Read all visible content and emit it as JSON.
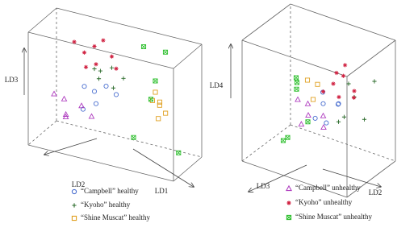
{
  "chart_data": [
    {
      "type": "scatter3d",
      "xlabel": "LD1",
      "ylabel": "LD2",
      "zlabel": "LD3",
      "xlim": [
        0,
        1
      ],
      "ylim": [
        0,
        1
      ],
      "zlim": [
        0,
        1
      ],
      "series": [
        {
          "name": "“Campbell” healthy",
          "color": "#4a6fd0",
          "marker": "circle",
          "x": [
            0.25,
            0.3,
            0.35,
            0.4,
            0.28,
            0.45
          ],
          "y": [
            0.3,
            0.2,
            0.4,
            0.3,
            0.5,
            0.2
          ],
          "z": [
            0.45,
            0.4,
            0.35,
            0.5,
            0.3,
            0.42
          ]
        },
        {
          "name": "“Kyoho” healthy",
          "color": "#2a6a2a",
          "marker": "plus",
          "x": [
            0.3,
            0.35,
            0.4,
            0.45,
            0.5,
            0.38
          ],
          "y": [
            0.2,
            0.3,
            0.1,
            0.3,
            0.2,
            0.4
          ],
          "z": [
            0.6,
            0.55,
            0.62,
            0.5,
            0.58,
            0.65
          ]
        },
        {
          "name": "“Shine Muscat” healthy",
          "color": "#e0a020",
          "marker": "square",
          "x": [
            0.7,
            0.75,
            0.72,
            0.78,
            0.68,
            0.74
          ],
          "y": [
            0.1,
            0.2,
            0.05,
            0.15,
            0.1,
            0.2
          ],
          "z": [
            0.5,
            0.45,
            0.38,
            0.35,
            0.42,
            0.3
          ]
        },
        {
          "name": "“Campbell” unhealthy",
          "color": "#b040c0",
          "marker": "triangle",
          "x": [
            0.15,
            0.2,
            0.25,
            0.1,
            0.3,
            0.22
          ],
          "y": [
            0.5,
            0.7,
            0.4,
            0.6,
            0.3,
            0.8
          ],
          "z": [
            0.35,
            0.25,
            0.3,
            0.4,
            0.2,
            0.3
          ]
        },
        {
          "name": "“Kyoho” unhealthy",
          "color": "#d02040",
          "marker": "asterisk",
          "x": [
            0.25,
            0.3,
            0.35,
            0.4,
            0.45,
            0.3,
            0.2,
            0.38
          ],
          "y": [
            0.3,
            0.2,
            0.4,
            0.1,
            0.2,
            0.5,
            0.4,
            0.3
          ],
          "z": [
            0.75,
            0.8,
            0.7,
            0.72,
            0.65,
            0.68,
            0.85,
            0.9
          ]
        },
        {
          "name": "“Shine Muscat” unhealthy",
          "color": "#30c030",
          "marker": "hourglass",
          "x": [
            0.6,
            0.75,
            0.7,
            0.55,
            0.85,
            0.65
          ],
          "y": [
            0.0,
            0.0,
            0.1,
            0.1,
            0.05,
            0.0
          ],
          "z": [
            0.85,
            0.85,
            0.6,
            0.05,
            0.0,
            0.4
          ]
        }
      ]
    },
    {
      "type": "scatter3d",
      "xlabel": "LD2",
      "ylabel": "LD3",
      "zlabel": "LD4",
      "xlim": [
        0,
        1
      ],
      "ylim": [
        0,
        1
      ],
      "zlim": [
        0,
        1
      ],
      "series": [
        {
          "name": "“Campbell” healthy",
          "color": "#4a6fd0",
          "marker": "circle",
          "x": [
            0.4,
            0.45,
            0.5,
            0.42,
            0.55,
            0.48
          ],
          "y": [
            0.2,
            0.3,
            0.1,
            0.4,
            0.2,
            0.3
          ],
          "z": [
            0.45,
            0.4,
            0.35,
            0.3,
            0.4,
            0.25
          ]
        },
        {
          "name": "“Kyoho” healthy",
          "color": "#2a6a2a",
          "marker": "plus",
          "x": [
            0.6,
            0.7,
            0.65,
            0.75,
            0.55,
            0.8
          ],
          "y": [
            0.1,
            0.2,
            0.3,
            0.1,
            0.2,
            0.0
          ],
          "z": [
            0.55,
            0.5,
            0.35,
            0.3,
            0.25,
            0.6
          ]
        },
        {
          "name": "“Shine Muscat” healthy",
          "color": "#e0a020",
          "marker": "square",
          "x": [
            0.3,
            0.35,
            0.4
          ],
          "y": [
            0.3,
            0.2,
            0.4
          ],
          "z": [
            0.55,
            0.5,
            0.45
          ]
        },
        {
          "name": "“Campbell” unhealthy",
          "color": "#b040c0",
          "marker": "triangle",
          "x": [
            0.35,
            0.4,
            0.45,
            0.5,
            0.38,
            0.3
          ],
          "y": [
            0.4,
            0.5,
            0.3,
            0.4,
            0.6,
            0.5
          ],
          "z": [
            0.4,
            0.35,
            0.3,
            0.25,
            0.3,
            0.45
          ]
        },
        {
          "name": "“Kyoho” unhealthy",
          "color": "#d02040",
          "marker": "asterisk",
          "x": [
            0.5,
            0.55,
            0.6,
            0.45,
            0.65,
            0.52,
            0.7,
            0.9
          ],
          "y": [
            0.2,
            0.1,
            0.3,
            0.3,
            0.1,
            0.0,
            0.2,
            1.0
          ],
          "z": [
            0.55,
            0.6,
            0.5,
            0.5,
            0.45,
            0.65,
            0.55,
            1.0
          ]
        },
        {
          "name": "“Shine Muscat” unhealthy",
          "color": "#30c030",
          "marker": "hourglass",
          "x": [
            0.1,
            0.15,
            0.2,
            0.3,
            0.25,
            0.35
          ],
          "y": [
            0.1,
            0.2,
            0.3,
            0.8,
            0.6,
            0.4
          ],
          "z": [
            0.45,
            0.4,
            0.5,
            0.2,
            0.15,
            0.25
          ]
        }
      ]
    }
  ]
}
